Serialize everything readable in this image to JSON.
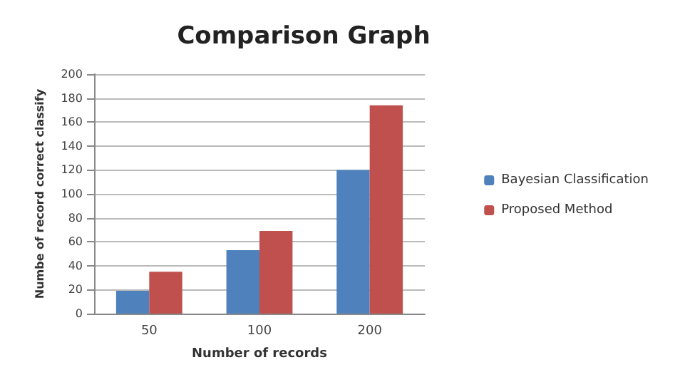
{
  "chart_data": {
    "type": "bar",
    "title": "Comparison Graph",
    "xlabel": "Number of records",
    "ylabel": "Numbe of record correct classify",
    "categories": [
      "50",
      "100",
      "200"
    ],
    "series": [
      {
        "name": "Bayesian Classification",
        "color": "#4f81bd",
        "values": [
          19,
          53,
          120
        ]
      },
      {
        "name": "Proposed Method",
        "color": "#c0504d",
        "values": [
          35,
          69,
          174
        ]
      }
    ],
    "ylim": [
      0,
      200
    ],
    "yticks": [
      0,
      20,
      40,
      60,
      80,
      100,
      120,
      140,
      160,
      180,
      200
    ],
    "grid": "y",
    "legend": "right"
  }
}
